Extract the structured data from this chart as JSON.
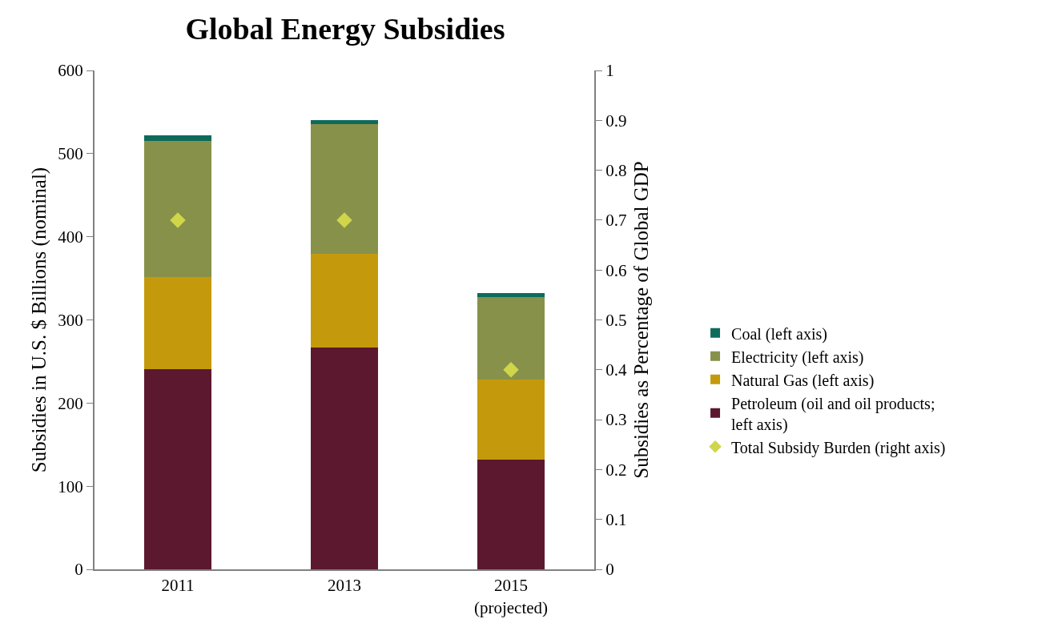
{
  "chart_data": {
    "type": "bar",
    "title": "Global Energy Subsidies",
    "categories": [
      "2011",
      "2013",
      "2015\n(projected)"
    ],
    "ylabel": "Subsidies in U.S. $ Billions (nominal)",
    "y2label": "Subsidies as Percentage of Global GDP",
    "stacked": true,
    "series": [
      {
        "name": "Petroleum (oil and oil products; left axis)",
        "color": "#5c182e",
        "values": [
          241,
          267,
          132
        ]
      },
      {
        "name": "Natural Gas (left axis)",
        "color": "#c49a0c",
        "values": [
          111,
          112,
          96
        ]
      },
      {
        "name": "Electricity (left axis)",
        "color": "#87914a",
        "values": [
          163,
          156,
          99
        ]
      },
      {
        "name": "Coal (left axis)",
        "color": "#0e6b5c",
        "values": [
          7,
          5,
          5
        ]
      },
      {
        "name": "Total Subsidy Burden (right axis)",
        "type": "scatter",
        "axis": "y2",
        "marker": "diamond",
        "color": "#cfd64a",
        "values": [
          0.7,
          0.7,
          0.4
        ]
      }
    ],
    "ylim": [
      0,
      600
    ],
    "yticks": [
      0,
      100,
      200,
      300,
      400,
      500,
      600
    ],
    "y2lim": [
      0,
      1
    ],
    "y2ticks": [
      0,
      0.1,
      0.2,
      0.3,
      0.4,
      0.5,
      0.6,
      0.7,
      0.8,
      0.9,
      1
    ],
    "legend": "right"
  }
}
